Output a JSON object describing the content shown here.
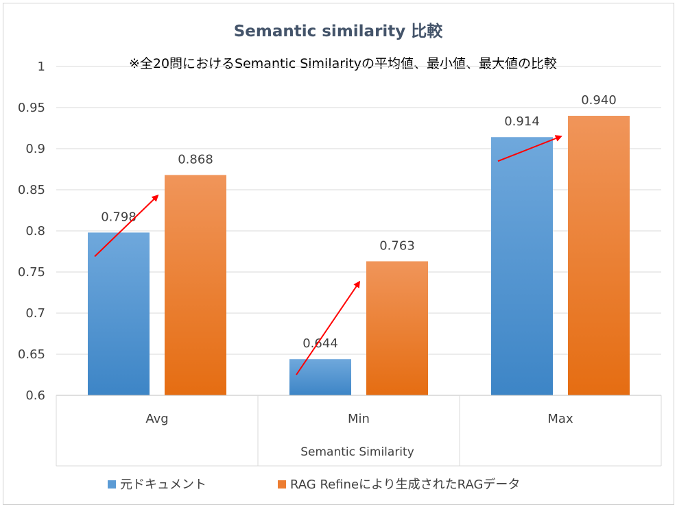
{
  "chart_data": {
    "type": "bar",
    "title": "Semantic similarity 比較",
    "subtitle": "※全20問におけるSemantic Similarityの平均値、最小値、最大値の比較",
    "xlabel": "Semantic Similarity",
    "ylabel": "",
    "ylim": [
      0.6,
      1.0
    ],
    "yticks": [
      "0.6",
      "0.65",
      "0.7",
      "0.75",
      "0.8",
      "0.85",
      "0.9",
      "0.95",
      "1"
    ],
    "grid": true,
    "legend_position": "bottom",
    "categories": [
      "Avg",
      "Min",
      "Max"
    ],
    "series": [
      {
        "name": "元ドキュメント",
        "values": [
          0.798,
          0.644,
          0.914
        ],
        "labels": [
          "0.798",
          "0.644",
          "0.914"
        ],
        "color": "#5b9bd5"
      },
      {
        "name": "RAG Refineにより生成されたRAGデータ",
        "values": [
          0.868,
          0.763,
          0.94
        ],
        "labels": [
          "0.868",
          "0.763",
          "0.940"
        ],
        "color": "#ed7d31"
      }
    ],
    "annotations": {
      "arrows": "red arrows from each 元ドキュメント bar to the paired RAG Refine bar",
      "arrow_color": "#ff0000"
    }
  }
}
